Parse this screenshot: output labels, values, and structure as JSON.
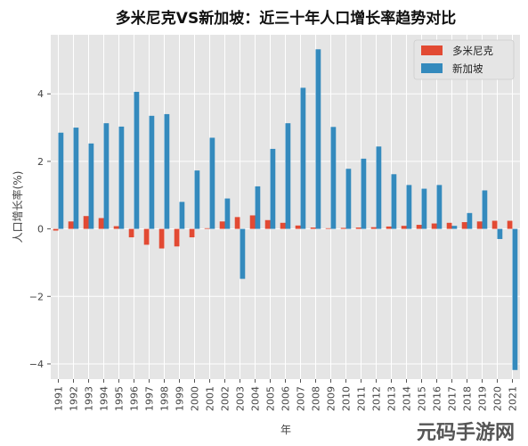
{
  "chart_data": {
    "type": "bar",
    "title": "多米尼克VS新加坡：近三十年人口增长率趋势对比",
    "xlabel": "年",
    "ylabel": "人口增长率(%)",
    "categories": [
      "1991",
      "1992",
      "1993",
      "1994",
      "1995",
      "1996",
      "1997",
      "1998",
      "1999",
      "2000",
      "2001",
      "2002",
      "2003",
      "2004",
      "2005",
      "2006",
      "2007",
      "2008",
      "2009",
      "2010",
      "2011",
      "2012",
      "2013",
      "2014",
      "2015",
      "2016",
      "2017",
      "2018",
      "2019",
      "2020",
      "2021"
    ],
    "series": [
      {
        "name": "多米尼克",
        "color": "#E24A33",
        "values": [
          -0.05,
          0.22,
          0.38,
          0.32,
          0.08,
          -0.25,
          -0.47,
          -0.58,
          -0.52,
          -0.25,
          0.02,
          0.22,
          0.35,
          0.4,
          0.26,
          0.18,
          0.1,
          0.04,
          0.02,
          0.03,
          0.04,
          0.05,
          0.07,
          0.09,
          0.12,
          0.16,
          0.18,
          0.2,
          0.22,
          0.24,
          0.24
        ]
      },
      {
        "name": "新加坡",
        "color": "#348ABD",
        "values": [
          2.85,
          3.0,
          2.53,
          3.13,
          3.03,
          4.06,
          3.35,
          3.4,
          0.8,
          1.73,
          2.7,
          0.9,
          -1.48,
          1.26,
          2.37,
          3.13,
          4.18,
          5.32,
          3.02,
          1.78,
          2.08,
          2.44,
          1.62,
          1.3,
          1.19,
          1.3,
          0.09,
          0.47,
          1.14,
          -0.3,
          -4.18
        ]
      }
    ],
    "yticks": [
      -4,
      -2,
      0,
      2,
      4
    ],
    "ylim": [
      -4.45,
      5.75
    ],
    "grid": true,
    "legend_position": "top-right"
  },
  "watermark": {
    "text": "元码手游网"
  }
}
